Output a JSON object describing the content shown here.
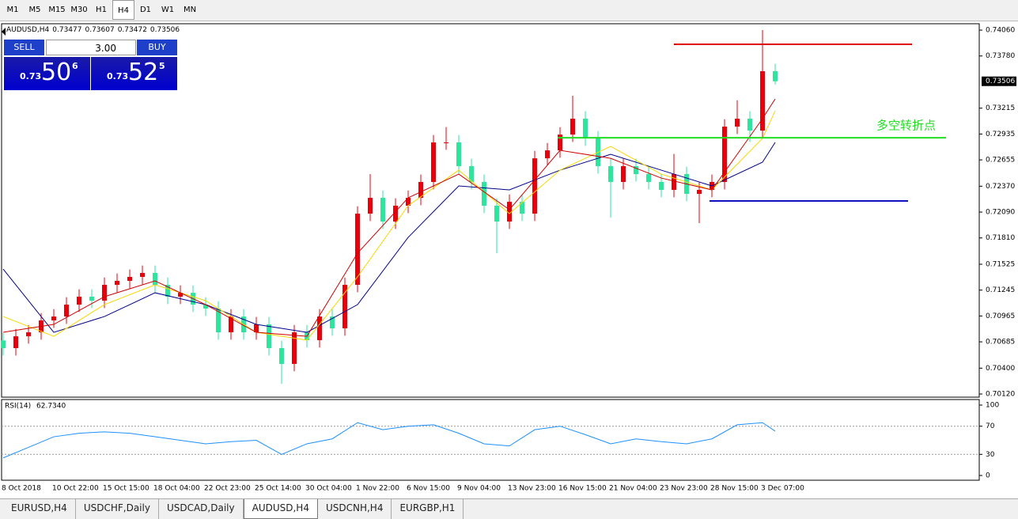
{
  "toolbar": {
    "timeframes": [
      "M1",
      "M5",
      "M15",
      "M30",
      "H1",
      "H4",
      "D1",
      "W1",
      "MN"
    ],
    "active_index": 5
  },
  "header": {
    "symbol": "AUDUSD,H4",
    "ohlc": [
      0.73477,
      0.73607,
      0.73472,
      0.73506
    ]
  },
  "trade_panel": {
    "sell": "SELL",
    "buy": "BUY",
    "lots": "3.00",
    "bid": {
      "big": "0.73",
      "main": "50",
      "sup": "6"
    },
    "ask": {
      "big": "0.73",
      "main": "52",
      "sup": "5"
    }
  },
  "chart_data": [
    {
      "type": "candlestick",
      "up_color": "#e8000b",
      "down_color": "#2ee59d",
      "categories": [
        "8 Oct 2018",
        null,
        null,
        null,
        "10 Oct 22:00",
        null,
        null,
        null,
        "15 Oct 15:00",
        null,
        null,
        null,
        "18 Oct 04:00",
        null,
        null,
        null,
        "22 Oct 23:00",
        null,
        null,
        null,
        "25 Oct 14:00",
        null,
        null,
        null,
        "30 Oct 04:00",
        null,
        null,
        null,
        "1 Nov 22:00",
        null,
        null,
        null,
        "6 Nov 15:00",
        null,
        null,
        null,
        "9 Nov 04:00",
        null,
        null,
        null,
        "13 Nov 23:00",
        null,
        null,
        null,
        "16 Nov 15:00",
        null,
        null,
        null,
        "21 Nov 04:00",
        null,
        null,
        null,
        "23 Nov 23:00",
        null,
        null,
        null,
        "28 Nov 15:00",
        null,
        null,
        null,
        "3 Dec 07:00",
        null
      ],
      "open": [
        0.707,
        0.70617,
        0.70745,
        0.70788,
        0.70917,
        0.70959,
        0.71088,
        0.71174,
        0.71131,
        0.71302,
        0.71345,
        0.71388,
        0.71431,
        0.71302,
        0.71174,
        0.71216,
        0.71088,
        0.71045,
        0.70788,
        0.70959,
        0.70788,
        0.70874,
        0.70617,
        0.70446,
        0.70788,
        0.70703,
        0.70959,
        0.70831,
        0.71302,
        0.72073,
        0.72244,
        0.71987,
        0.72159,
        0.72244,
        0.72416,
        0.72844,
        0.72844,
        0.72587,
        0.72416,
        0.72159,
        0.71987,
        0.72201,
        0.72073,
        0.72672,
        0.72758,
        0.72929,
        0.73101,
        0.72887,
        0.72587,
        0.72416,
        0.72587,
        0.72501,
        0.72416,
        0.7233,
        0.72501,
        0.72287,
        0.7233,
        0.72416,
        0.73015,
        0.73101,
        0.72972,
        0.73615
      ],
      "high": [
        0.7078,
        0.70825,
        0.70868,
        0.70997,
        0.71039,
        0.71168,
        0.71254,
        0.71254,
        0.71382,
        0.71425,
        0.71468,
        0.71511,
        0.71511,
        0.71382,
        0.71296,
        0.71296,
        0.71168,
        0.71125,
        0.71039,
        0.71039,
        0.70954,
        0.70954,
        0.70697,
        0.70868,
        0.70868,
        0.71039,
        0.71039,
        0.71382,
        0.72153,
        0.725,
        0.72324,
        0.72239,
        0.72324,
        0.72496,
        0.72924,
        0.7301,
        0.72924,
        0.72667,
        0.72496,
        0.72239,
        0.72281,
        0.72281,
        0.72752,
        0.72838,
        0.73009,
        0.7335,
        0.73181,
        0.72967,
        0.72667,
        0.72667,
        0.72667,
        0.72581,
        0.72496,
        0.7272,
        0.72581,
        0.7241,
        0.72496,
        0.73095,
        0.733,
        0.73181,
        0.7406,
        0.73695
      ],
      "low": [
        0.70537,
        0.70537,
        0.70665,
        0.70708,
        0.70837,
        0.70879,
        0.71008,
        0.71051,
        0.71051,
        0.71222,
        0.71265,
        0.71308,
        0.71222,
        0.71094,
        0.71094,
        0.71008,
        0.70965,
        0.70708,
        0.70708,
        0.70708,
        0.70708,
        0.70537,
        0.70231,
        0.70366,
        0.70623,
        0.70623,
        0.70751,
        0.70751,
        0.71222,
        0.71993,
        0.71907,
        0.71907,
        0.72079,
        0.72164,
        0.72336,
        0.72764,
        0.72507,
        0.72336,
        0.72079,
        0.71645,
        0.71907,
        0.71993,
        0.71993,
        0.72592,
        0.72678,
        0.72849,
        0.72807,
        0.72507,
        0.7203,
        0.72336,
        0.72421,
        0.72336,
        0.7225,
        0.7225,
        0.72207,
        0.7197,
        0.7225,
        0.72336,
        0.72935,
        0.7285,
        0.72892,
        0.73472
      ],
      "close": [
        0.70617,
        0.70745,
        0.70788,
        0.70917,
        0.70959,
        0.71088,
        0.71174,
        0.71131,
        0.71302,
        0.71345,
        0.71388,
        0.71431,
        0.71302,
        0.71174,
        0.71216,
        0.71088,
        0.71045,
        0.70788,
        0.70959,
        0.70788,
        0.70874,
        0.70617,
        0.70446,
        0.70788,
        0.70703,
        0.70959,
        0.70831,
        0.71302,
        0.72073,
        0.72244,
        0.71987,
        0.72159,
        0.72244,
        0.72416,
        0.72844,
        0.72844,
        0.72587,
        0.72416,
        0.72159,
        0.71987,
        0.72201,
        0.72073,
        0.72672,
        0.72758,
        0.72929,
        0.73101,
        0.72887,
        0.72587,
        0.72416,
        0.72587,
        0.72501,
        0.72416,
        0.7233,
        0.72501,
        0.72287,
        0.7233,
        0.72416,
        0.73015,
        0.73101,
        0.72972,
        0.73615,
        0.73506
      ],
      "moving_averages": [
        {
          "color": "#00008b",
          "x": [
            0,
            4,
            8,
            12,
            16,
            20,
            24,
            28,
            32,
            36,
            40,
            44,
            48,
            52,
            56,
            60,
            61
          ],
          "values": [
            0.71473,
            0.70788,
            0.70959,
            0.71216,
            0.71088,
            0.70874,
            0.70788,
            0.71088,
            0.71816,
            0.72373,
            0.7233,
            0.72544,
            0.72715,
            0.72544,
            0.72373,
            0.7263,
            0.72844
          ]
        },
        {
          "color": "#f5d800",
          "x": [
            0,
            4,
            8,
            12,
            16,
            20,
            24,
            28,
            32,
            36,
            40,
            44,
            48,
            52,
            56,
            60,
            61
          ],
          "values": [
            0.70959,
            0.70745,
            0.71088,
            0.71302,
            0.71131,
            0.70788,
            0.70703,
            0.71388,
            0.72159,
            0.72544,
            0.72073,
            0.72544,
            0.72801,
            0.72501,
            0.7233,
            0.72887,
            0.73186
          ]
        },
        {
          "color": "#d00000",
          "x": [
            0,
            4,
            8,
            12,
            16,
            20,
            24,
            28,
            32,
            36,
            40,
            44,
            48,
            52,
            56,
            60,
            61
          ],
          "values": [
            0.70788,
            0.70874,
            0.71174,
            0.71345,
            0.71088,
            0.70788,
            0.70745,
            0.71645,
            0.72244,
            0.72501,
            0.72116,
            0.72758,
            0.72672,
            0.72458,
            0.7233,
            0.73101,
            0.73315
          ]
        }
      ],
      "levels": [
        {
          "value": 0.73906,
          "color": "#e00000"
        },
        {
          "value": 0.72895,
          "color": "#22dd22",
          "label": "多空转折点"
        },
        {
          "value": 0.7221,
          "color": "#1010c0"
        }
      ],
      "ylim": [
        0.70086,
        0.74129
      ],
      "yticks": [
        {
          "value": 0.7406,
          "label": "0.74060"
        },
        {
          "value": 0.7378,
          "label": "0.73780"
        },
        {
          "value": 0.73215,
          "label": "0.73215"
        },
        {
          "value": 0.72935,
          "label": "0.72935"
        },
        {
          "value": 0.72655,
          "label": "0.72655"
        },
        {
          "value": 0.7237,
          "label": "0.72370"
        },
        {
          "value": 0.7209,
          "label": "0.72090"
        },
        {
          "value": 0.7181,
          "label": "0.71810"
        },
        {
          "value": 0.71525,
          "label": "0.71525"
        },
        {
          "value": 0.71245,
          "label": "0.71245"
        },
        {
          "value": 0.70965,
          "label": "0.70965"
        },
        {
          "value": 0.70685,
          "label": "0.70685"
        },
        {
          "value": 0.704,
          "label": "0.70400"
        },
        {
          "value": 0.7012,
          "label": "0.70120"
        }
      ],
      "current_price": {
        "value": 0.73506,
        "label": "0.73506"
      }
    },
    {
      "type": "line",
      "title": "RSI(14)",
      "last_value": {
        "value": 62.734,
        "label": "62.7340"
      },
      "color": "#1e90ff",
      "x": [
        0,
        2,
        4,
        6,
        8,
        10,
        12,
        14,
        16,
        18,
        20,
        22,
        24,
        26,
        28,
        30,
        32,
        34,
        36,
        38,
        40,
        42,
        44,
        46,
        48,
        50,
        52,
        54,
        56,
        58,
        60,
        61
      ],
      "values": [
        25,
        40,
        55,
        60,
        62,
        60,
        55,
        50,
        45,
        48,
        50,
        30,
        45,
        52,
        75,
        65,
        70,
        72,
        60,
        45,
        42,
        65,
        70,
        58,
        45,
        52,
        48,
        45,
        52,
        72,
        75,
        63
      ],
      "ylim": [
        -6.74,
        107.87
      ],
      "yticks": [
        0,
        30,
        70,
        100
      ],
      "levels": [
        30,
        70
      ]
    }
  ],
  "tabs": {
    "items": [
      "EURUSD,H4",
      "USDCHF,Daily",
      "USDCAD,Daily",
      "AUDUSD,H4",
      "USDCNH,H4",
      "EURGBP,H1"
    ],
    "active_index": 3
  }
}
